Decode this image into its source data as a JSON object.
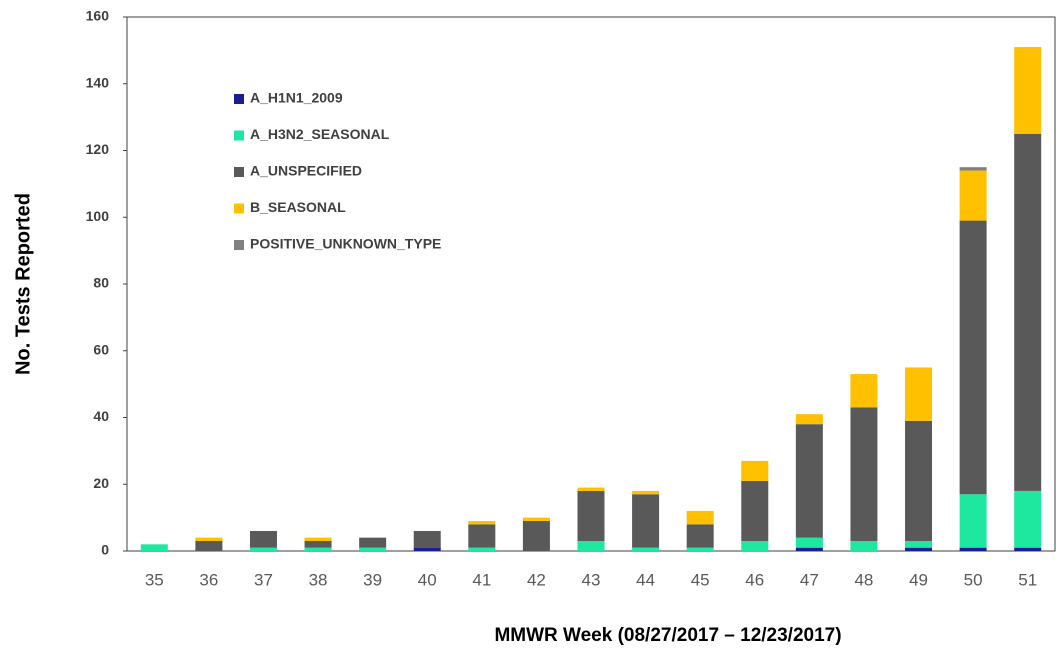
{
  "chart_data": {
    "type": "stacked_bar",
    "x_label": "MMWR Week (08/27/2017 – 12/23/2017)",
    "y_label": "No. Tests Reported",
    "categories": [
      "35",
      "36",
      "37",
      "38",
      "39",
      "40",
      "41",
      "42",
      "43",
      "44",
      "45",
      "46",
      "47",
      "48",
      "49",
      "50",
      "51"
    ],
    "series": [
      {
        "name": "A_H1N1_2009",
        "color": "#1c1c96",
        "values": [
          0,
          0,
          0,
          0,
          0,
          1,
          0,
          0,
          0,
          0,
          0,
          0,
          1,
          0,
          1,
          1,
          1
        ]
      },
      {
        "name": "A_H3N2_SEASONAL",
        "color": "#1ee8a0",
        "values": [
          2,
          0,
          1,
          1,
          1,
          0,
          1,
          0,
          3,
          1,
          1,
          3,
          3,
          3,
          2,
          16,
          17
        ]
      },
      {
        "name": "A_UNSPECIFIED",
        "color": "#595959",
        "values": [
          0,
          3,
          5,
          2,
          3,
          5,
          7,
          9,
          15,
          16,
          7,
          18,
          34,
          40,
          36,
          82,
          107
        ]
      },
      {
        "name": "B_SEASONAL",
        "color": "#ffc000",
        "values": [
          0,
          1,
          0,
          1,
          0,
          0,
          1,
          1,
          1,
          1,
          4,
          6,
          3,
          10,
          16,
          15,
          26
        ]
      },
      {
        "name": "POSITIVE_UNKNOWN_TYPE",
        "color": "#808080",
        "values": [
          0,
          0,
          0,
          0,
          0,
          0,
          0,
          0,
          0,
          0,
          0,
          0,
          0,
          0,
          0,
          1,
          0
        ]
      }
    ],
    "ylim": [
      0,
      160
    ],
    "yticks": [
      0,
      20,
      40,
      60,
      80,
      100,
      120,
      140,
      160
    ],
    "grid": false,
    "legend": "upper left"
  }
}
